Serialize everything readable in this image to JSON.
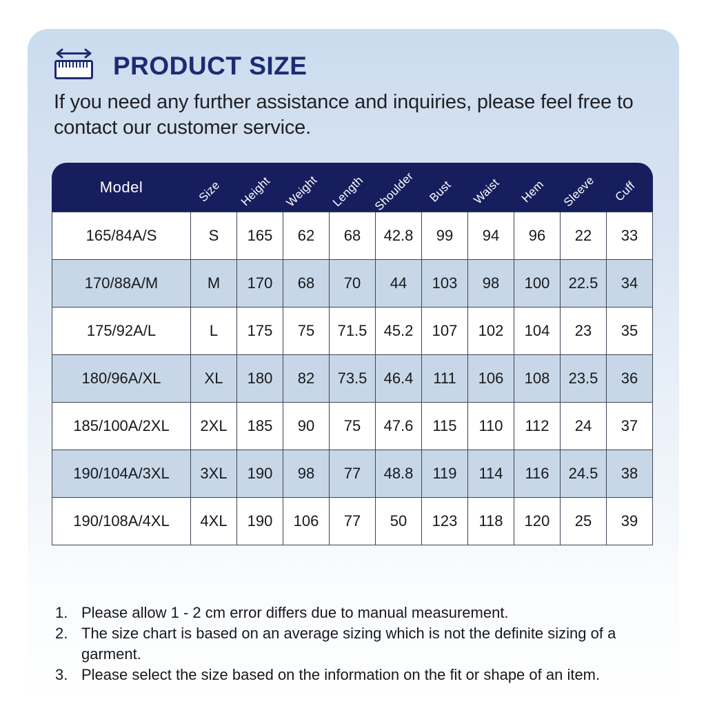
{
  "header": {
    "title": "PRODUCT SIZE",
    "subtitle": "If you need any further assistance and inquiries, please feel free to contact our customer service.",
    "icon": "ruler-icon"
  },
  "table": {
    "columns": [
      "Model",
      "Size",
      "Height",
      "Weight",
      "Length",
      "Shoulder",
      "Bust",
      "Waist",
      "Hem",
      "Sleeve",
      "Cuff"
    ],
    "rows": [
      [
        "165/84A/S",
        "S",
        "165",
        "62",
        "68",
        "42.8",
        "99",
        "94",
        "96",
        "22",
        "33"
      ],
      [
        "170/88A/M",
        "M",
        "170",
        "68",
        "70",
        "44",
        "103",
        "98",
        "100",
        "22.5",
        "34"
      ],
      [
        "175/92A/L",
        "L",
        "175",
        "75",
        "71.5",
        "45.2",
        "107",
        "102",
        "104",
        "23",
        "35"
      ],
      [
        "180/96A/XL",
        "XL",
        "180",
        "82",
        "73.5",
        "46.4",
        "111",
        "106",
        "108",
        "23.5",
        "36"
      ],
      [
        "185/100A/2XL",
        "2XL",
        "185",
        "90",
        "75",
        "47.6",
        "115",
        "110",
        "112",
        "24",
        "37"
      ],
      [
        "190/104A/3XL",
        "3XL",
        "190",
        "98",
        "77",
        "48.8",
        "119",
        "114",
        "116",
        "24.5",
        "38"
      ],
      [
        "190/108A/4XL",
        "4XL",
        "190",
        "106",
        "77",
        "50",
        "123",
        "118",
        "120",
        "25",
        "39"
      ]
    ]
  },
  "notes": [
    {
      "num": "1.",
      "text": "Please allow 1 - 2 cm error differs due to manual measurement."
    },
    {
      "num": "2.",
      "text": "The size chart is based on an average sizing which is not the definite sizing of a garment."
    },
    {
      "num": "3.",
      "text": "Please select the size based on the information on the fit or shape of an item."
    }
  ],
  "colors": {
    "header_navy": "#171e5e",
    "title_navy": "#1c2b72",
    "alt_row_blue": "#c7d7e7",
    "card_top_blue": "#cbdcef",
    "table_border": "#3d4254",
    "body_text": "#17181c"
  }
}
